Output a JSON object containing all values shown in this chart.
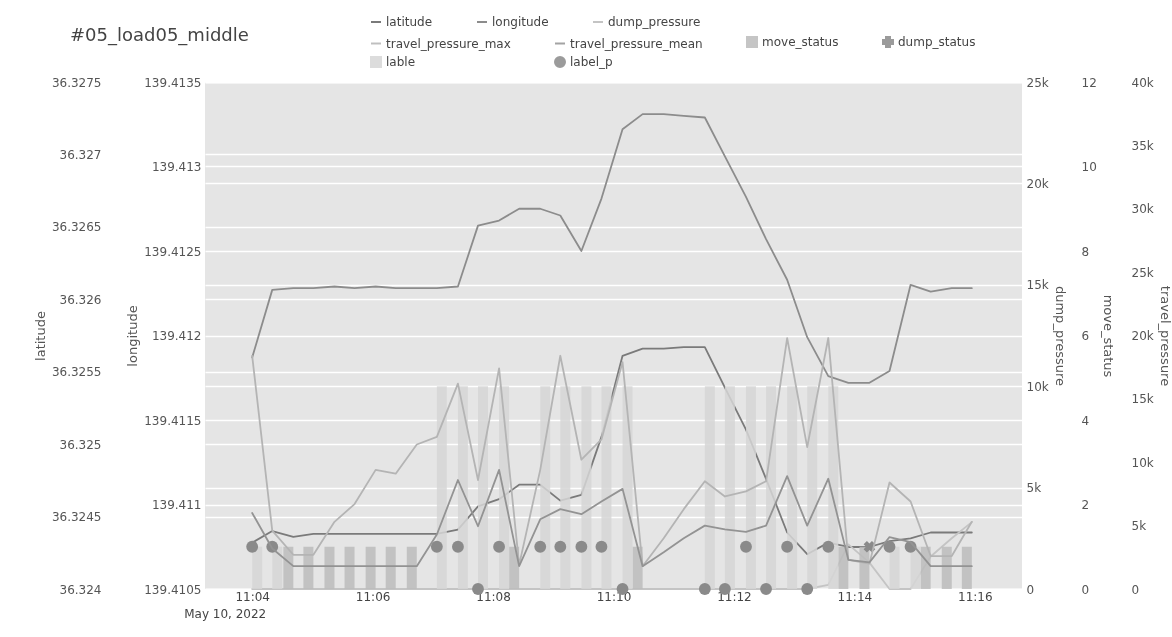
{
  "chart_data": [
    {
      "type": "line",
      "title": "#05_load05_middle",
      "annotations": [
        "May 10, 2022"
      ],
      "x": [
        "2022-05-10T11:04:00",
        "2022-05-10T11:04:20",
        "2022-05-10T11:04:41",
        "2022-05-10T11:05:01",
        "2022-05-10T11:05:22",
        "2022-05-10T11:05:42",
        "2022-05-10T11:06:03",
        "2022-05-10T11:06:23",
        "2022-05-10T11:06:44",
        "2022-05-10T11:07:04",
        "2022-05-10T11:07:25",
        "2022-05-10T11:07:45",
        "2022-05-10T11:08:06",
        "2022-05-10T11:08:26",
        "2022-05-10T11:08:47",
        "2022-05-10T11:09:07",
        "2022-05-10T11:09:28",
        "2022-05-10T11:09:48",
        "2022-05-10T11:10:09",
        "2022-05-10T11:10:29",
        "2022-05-10T11:10:50",
        "2022-05-10T11:11:10",
        "2022-05-10T11:11:31",
        "2022-05-10T11:11:51",
        "2022-05-10T11:12:12",
        "2022-05-10T11:12:32",
        "2022-05-10T11:12:53",
        "2022-05-10T11:13:13",
        "2022-05-10T11:13:34",
        "2022-05-10T11:13:54",
        "2022-05-10T11:14:15",
        "2022-05-10T11:14:35",
        "2022-05-10T11:14:56",
        "2022-05-10T11:15:16",
        "2022-05-10T11:15:37",
        "2022-05-10T11:15:57"
      ],
      "xlim": [
        "2022-05-10T11:03:13",
        "2022-05-10T11:16:47"
      ],
      "xticks": [
        {
          "value": "2022-05-10T11:04:00",
          "label": "11:04"
        },
        {
          "value": "2022-05-10T11:06:00",
          "label": "11:06"
        },
        {
          "value": "2022-05-10T11:08:00",
          "label": "11:08"
        },
        {
          "value": "2022-05-10T11:10:00",
          "label": "11:10"
        },
        {
          "value": "2022-05-10T11:12:00",
          "label": "11:12"
        },
        {
          "value": "2022-05-10T11:14:00",
          "label": "11:14"
        },
        {
          "value": "2022-05-10T11:16:00",
          "label": "11:16"
        }
      ],
      "ylabel": "latitude",
      "ylim": [
        36.324,
        36.3275
      ],
      "yticks": [
        36.324,
        36.3245,
        36.325,
        36.3255,
        36.326,
        36.3265,
        36.327,
        36.3275
      ],
      "y2label": "longitude",
      "y2lim": [
        139.4105,
        139.4135
      ],
      "y2ticks": [
        139.4105,
        139.411,
        139.4115,
        139.412,
        139.4125,
        139.413,
        139.4135
      ],
      "y3label": "dump_pressure",
      "y3lim": [
        0,
        25000
      ],
      "y3ticks": [
        0,
        {
          "value": 5000,
          "label": "5k"
        },
        {
          "value": 10000,
          "label": "10k"
        },
        {
          "value": 15000,
          "label": "15k"
        },
        {
          "value": 20000,
          "label": "20k"
        },
        {
          "value": 25000,
          "label": "25k"
        }
      ],
      "grid": "y",
      "legend": "top",
      "series": [
        {
          "name": "latitude",
          "color": "#7a7a7a",
          "values": [
            36.32432,
            36.3244,
            36.32436,
            36.32438,
            36.32438,
            36.32438,
            36.32438,
            36.32438,
            36.32438,
            36.32438,
            36.32441,
            36.32457,
            36.32462,
            36.32472,
            36.32472,
            36.32461,
            36.32465,
            36.32505,
            36.32561,
            36.32566,
            36.32566,
            36.32567,
            36.32567,
            36.32539,
            36.3251,
            36.32476,
            36.32439,
            36.32424,
            36.32432,
            36.32429,
            36.32429,
            36.32433,
            36.32435,
            36.32439,
            36.32439,
            36.32439
          ]
        },
        {
          "name": "longitude",
          "axis": "y2",
          "color": "#8c8c8c",
          "values": [
            139.41187,
            139.41227,
            139.41228,
            139.41228,
            139.41229,
            139.41228,
            139.41229,
            139.41228,
            139.41228,
            139.41228,
            139.41229,
            139.41265,
            139.41268,
            139.41275,
            139.41275,
            139.41271,
            139.4125,
            139.41281,
            139.41322,
            139.41331,
            139.41331,
            139.4133,
            139.41329,
            139.41306,
            139.41282,
            139.41257,
            139.41233,
            139.41199,
            139.41176,
            139.41172,
            139.41172,
            139.41179,
            139.4123,
            139.41226,
            139.41228,
            139.41228
          ]
        },
        {
          "name": "dump_pressure",
          "axis": "y3",
          "color": "#c4c4c4",
          "values": [
            0,
            0,
            0,
            0,
            0,
            0,
            0,
            0,
            0,
            0,
            0,
            0,
            0,
            0,
            0,
            0,
            0,
            0,
            0,
            0,
            0,
            0,
            0,
            0,
            0,
            0,
            0,
            0,
            200,
            2200,
            1300,
            0,
            0,
            1600,
            2500,
            3300
          ]
        }
      ]
    },
    {
      "type": "bar",
      "tick_labels": "y",
      "x": [
        "2022-05-10T11:04:00",
        "2022-05-10T11:04:20",
        "2022-05-10T11:04:41",
        "2022-05-10T11:05:01",
        "2022-05-10T11:05:22",
        "2022-05-10T11:05:42",
        "2022-05-10T11:06:03",
        "2022-05-10T11:06:23",
        "2022-05-10T11:06:44",
        "2022-05-10T11:07:04",
        "2022-05-10T11:07:25",
        "2022-05-10T11:07:45",
        "2022-05-10T11:08:06",
        "2022-05-10T11:08:26",
        "2022-05-10T11:08:47",
        "2022-05-10T11:09:07",
        "2022-05-10T11:09:28",
        "2022-05-10T11:09:48",
        "2022-05-10T11:10:09",
        "2022-05-10T11:10:29",
        "2022-05-10T11:10:50",
        "2022-05-10T11:11:10",
        "2022-05-10T11:11:31",
        "2022-05-10T11:11:51",
        "2022-05-10T11:12:12",
        "2022-05-10T11:12:32",
        "2022-05-10T11:12:53",
        "2022-05-10T11:13:13",
        "2022-05-10T11:13:34",
        "2022-05-10T11:13:54",
        "2022-05-10T11:14:15",
        "2022-05-10T11:14:35",
        "2022-05-10T11:14:56",
        "2022-05-10T11:15:16",
        "2022-05-10T11:15:37",
        "2022-05-10T11:15:57"
      ],
      "xlim": [
        "2022-05-10T11:03:13",
        "2022-05-10T11:16:47"
      ],
      "xticks": [
        "2022-05-10T11:04:00",
        "2022-05-10T11:06:00",
        "2022-05-10T11:08:00",
        "2022-05-10T11:10:00",
        "2022-05-10T11:12:00",
        "2022-05-10T11:14:00",
        "2022-05-10T11:16:00"
      ],
      "ylabel": "move_status",
      "ylim": [
        0,
        12
      ],
      "yticks": [
        0,
        2,
        4,
        6,
        8,
        10,
        12
      ],
      "y2label": "travel_pressure",
      "y2lim": [
        0,
        40000
      ],
      "y2ticks": [
        0,
        {
          "value": 5000,
          "label": "5k"
        },
        {
          "value": 10000,
          "label": "10k"
        },
        {
          "value": 15000,
          "label": "15k"
        },
        {
          "value": 20000,
          "label": "20k"
        },
        {
          "value": 25000,
          "label": "25k"
        },
        {
          "value": 30000,
          "label": "30k"
        },
        {
          "value": 35000,
          "label": "35k"
        },
        {
          "value": 40000,
          "label": "40k"
        }
      ],
      "legend": "top",
      "series": [
        {
          "name": "travel_pressure_max",
          "type": "line",
          "axis": "y2",
          "color": "#b4b4b4",
          "values": [
            18400,
            4600,
            2700,
            2700,
            5300,
            6700,
            9400,
            9100,
            11400,
            12000,
            16200,
            8600,
            17400,
            1900,
            9400,
            18400,
            10200,
            11800,
            17900,
            1800,
            4000,
            6300,
            8500,
            7300,
            7700,
            8500,
            19800,
            11200,
            19800,
            2300,
            2000,
            8400,
            6900,
            2600,
            2600,
            5300
          ]
        },
        {
          "name": "travel_pressure_mean",
          "type": "line",
          "axis": "y2",
          "color": "#939393",
          "values": [
            6000,
            3200,
            1800,
            1800,
            1800,
            1800,
            1800,
            1800,
            1800,
            4300,
            8600,
            4950,
            9400,
            1800,
            5500,
            6300,
            5900,
            6900,
            7900,
            1800,
            2900,
            4000,
            5000,
            4700,
            4500,
            5000,
            8900,
            5000,
            8700,
            2300,
            2100,
            4100,
            3700,
            1800,
            1800,
            1800
          ]
        },
        {
          "name": "move_status",
          "color": "#bcbcbc",
          "values": [
            null,
            null,
            1,
            1,
            1,
            1,
            1,
            1,
            1,
            null,
            null,
            null,
            null,
            1,
            null,
            null,
            null,
            null,
            null,
            1,
            null,
            null,
            null,
            null,
            null,
            null,
            null,
            null,
            null,
            1,
            1,
            null,
            null,
            1,
            1,
            1
          ]
        },
        {
          "name": "dump_status",
          "type": "scatter",
          "marker": "cross",
          "color": "#8a8a8a",
          "values": [
            null,
            null,
            null,
            null,
            null,
            null,
            null,
            null,
            null,
            null,
            null,
            null,
            null,
            null,
            null,
            null,
            null,
            null,
            null,
            null,
            null,
            null,
            null,
            null,
            null,
            null,
            null,
            null,
            null,
            null,
            1,
            null,
            null,
            null,
            null,
            null
          ]
        },
        {
          "name": "lable",
          "color": "#d6d6d6",
          "values": [
            1,
            1,
            null,
            null,
            null,
            null,
            null,
            null,
            null,
            4.8,
            4.8,
            4.8,
            4.8,
            null,
            4.8,
            4.8,
            4.8,
            4.8,
            4.8,
            null,
            null,
            null,
            4.8,
            4.8,
            4.8,
            4.8,
            4.8,
            4.8,
            4.8,
            null,
            null,
            1,
            1,
            null,
            null,
            null
          ]
        },
        {
          "name": "label_p",
          "type": "scatter",
          "marker": "circle",
          "color": "#8a8a8a",
          "values": [
            1,
            1,
            null,
            null,
            null,
            null,
            null,
            null,
            null,
            1,
            1,
            0,
            1,
            null,
            1,
            1,
            1,
            1,
            0,
            null,
            null,
            null,
            0,
            0,
            1,
            0,
            1,
            0,
            1,
            null,
            null,
            1,
            1,
            null,
            null,
            null
          ]
        }
      ]
    }
  ]
}
